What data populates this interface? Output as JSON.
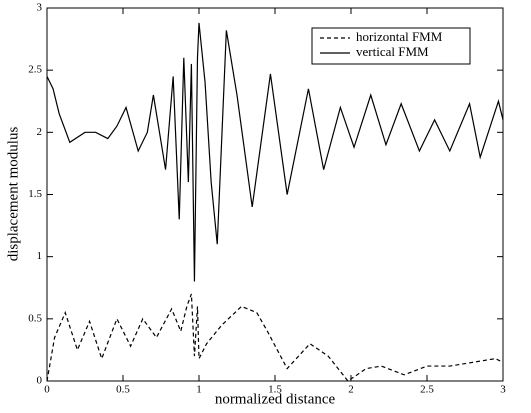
{
  "chart_data": {
    "type": "line",
    "xlabel": "normalized distance",
    "ylabel": "displacement modulus",
    "xlim": [
      0,
      3
    ],
    "ylim": [
      0,
      3
    ],
    "xticks": [
      0,
      0.5,
      1,
      1.5,
      2,
      2.5,
      3
    ],
    "yticks": [
      0,
      0.5,
      1,
      1.5,
      2,
      2.5,
      3
    ],
    "legend": "upper right",
    "series": [
      {
        "name": "horizontal FMM",
        "color": "#000000",
        "dash": "4,3",
        "x": [
          0,
          0.05,
          0.12,
          0.2,
          0.28,
          0.36,
          0.46,
          0.55,
          0.63,
          0.72,
          0.82,
          0.88,
          0.92,
          0.95,
          0.97,
          0.99,
          1.0,
          1.05,
          1.15,
          1.28,
          1.38,
          1.45,
          1.58,
          1.73,
          1.85,
          1.98,
          2.1,
          2.2,
          2.35,
          2.5,
          2.65,
          2.8,
          2.95,
          3
        ],
        "values": [
          0,
          0.35,
          0.55,
          0.25,
          0.48,
          0.18,
          0.5,
          0.28,
          0.5,
          0.35,
          0.58,
          0.4,
          0.6,
          0.7,
          0.2,
          0.6,
          0.18,
          0.3,
          0.45,
          0.6,
          0.55,
          0.4,
          0.1,
          0.3,
          0.2,
          0,
          0.1,
          0.12,
          0.05,
          0.12,
          0.12,
          0.15,
          0.18,
          0.15
        ]
      },
      {
        "name": "vertical FMM",
        "color": "#000000",
        "dash": "none",
        "x": [
          0,
          0.04,
          0.08,
          0.15,
          0.25,
          0.32,
          0.4,
          0.46,
          0.52,
          0.6,
          0.66,
          0.7,
          0.74,
          0.78,
          0.83,
          0.87,
          0.9,
          0.93,
          0.95,
          0.97,
          0.99,
          1.0,
          1.04,
          1.08,
          1.12,
          1.18,
          1.25,
          1.35,
          1.47,
          1.58,
          1.72,
          1.82,
          1.93,
          2.02,
          2.13,
          2.23,
          2.33,
          2.45,
          2.55,
          2.65,
          2.78,
          2.85,
          2.97,
          3
        ],
        "values": [
          2.45,
          2.35,
          2.15,
          1.92,
          2.0,
          2.0,
          1.95,
          2.05,
          2.2,
          1.85,
          2.0,
          2.3,
          2.0,
          1.7,
          2.45,
          1.3,
          2.6,
          1.6,
          2.55,
          0.8,
          2.6,
          2.88,
          2.4,
          1.6,
          1.1,
          2.82,
          2.3,
          1.4,
          2.47,
          1.5,
          2.35,
          1.7,
          2.2,
          1.88,
          2.3,
          1.9,
          2.23,
          1.85,
          2.1,
          1.85,
          2.23,
          1.8,
          2.25,
          2.1
        ]
      }
    ]
  }
}
